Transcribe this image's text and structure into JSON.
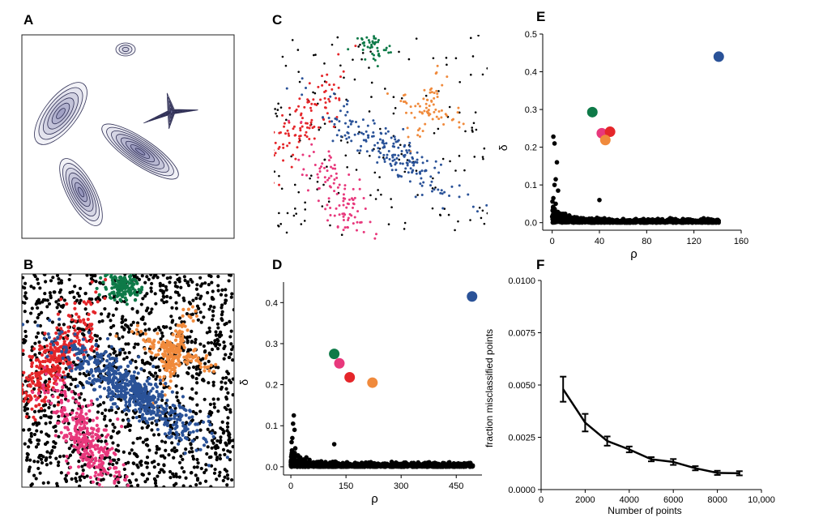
{
  "panel_labels": {
    "A": "A",
    "B": "B",
    "C": "C",
    "D": "D",
    "E": "E",
    "F": "F"
  },
  "colors": {
    "green": "#0e7a48",
    "orange": "#f08a3c",
    "red": "#e5262a",
    "blue": "#2a5298",
    "pink": "#e8387c",
    "noise": "#000000",
    "contour": "#2f2f55",
    "density": "#4a4a90"
  },
  "panel_A": {
    "description_keys": [
      "gaussian",
      "star",
      "crescent",
      "ellipse"
    ]
  },
  "chart_data": [
    {
      "panel": "D",
      "type": "scatter",
      "xlabel": "ρ",
      "ylabel": "δ",
      "xlim": [
        -20,
        520
      ],
      "ylim": [
        -0.02,
        0.45
      ],
      "xticks": [
        0,
        150,
        300,
        450
      ],
      "yticks": [
        0.0,
        0.1,
        0.2,
        0.3,
        0.4
      ],
      "xticklabels": [
        "0",
        "150",
        "300",
        "450"
      ],
      "yticklabels": [
        "0.0",
        "0.1",
        "0.2",
        "0.3",
        "0.4"
      ],
      "cluster_centers": [
        {
          "color": "blue",
          "x": 493,
          "y": 0.415
        },
        {
          "color": "green",
          "x": 118,
          "y": 0.275
        },
        {
          "color": "pink",
          "x": 132,
          "y": 0.252
        },
        {
          "color": "red",
          "x": 160,
          "y": 0.218
        },
        {
          "color": "orange",
          "x": 222,
          "y": 0.205
        }
      ],
      "outliers": [
        {
          "x": 8,
          "y": 0.125
        },
        {
          "x": 6,
          "y": 0.105
        },
        {
          "x": 10,
          "y": 0.09
        },
        {
          "x": 4,
          "y": 0.07
        },
        {
          "x": 2,
          "y": 0.06
        },
        {
          "x": 118,
          "y": 0.055
        },
        {
          "x": 12,
          "y": 0.045
        },
        {
          "x": 3,
          "y": 0.04
        }
      ],
      "bulk": {
        "x_max": 495,
        "y_max": 0.02
      }
    },
    {
      "panel": "E",
      "type": "scatter",
      "xlabel": "ρ",
      "ylabel": "δ",
      "xlim": [
        -8,
        160
      ],
      "ylim": [
        -0.02,
        0.5
      ],
      "xticks": [
        0,
        40,
        80,
        120,
        160
      ],
      "yticks": [
        0.0,
        0.1,
        0.2,
        0.3,
        0.4,
        0.5
      ],
      "xticklabels": [
        "0",
        "40",
        "80",
        "120",
        "160"
      ],
      "yticklabels": [
        "0.0",
        "0.1",
        "0.2",
        "0.3",
        "0.4",
        "0.5"
      ],
      "cluster_centers": [
        {
          "color": "blue",
          "x": 141,
          "y": 0.44
        },
        {
          "color": "green",
          "x": 34,
          "y": 0.293
        },
        {
          "color": "pink",
          "x": 42,
          "y": 0.237
        },
        {
          "color": "red",
          "x": 49,
          "y": 0.241
        },
        {
          "color": "orange",
          "x": 45,
          "y": 0.219
        }
      ],
      "outliers": [
        {
          "x": 1,
          "y": 0.228
        },
        {
          "x": 2,
          "y": 0.21
        },
        {
          "x": 4,
          "y": 0.16
        },
        {
          "x": 3,
          "y": 0.115
        },
        {
          "x": 2,
          "y": 0.1
        },
        {
          "x": 5,
          "y": 0.085
        },
        {
          "x": 40,
          "y": 0.06
        },
        {
          "x": 1,
          "y": 0.065
        },
        {
          "x": 3,
          "y": 0.05
        }
      ],
      "bulk": {
        "x_max": 141,
        "y_max": 0.03
      }
    },
    {
      "panel": "F",
      "type": "line",
      "xlabel": "Number of points",
      "ylabel": "fraction misclassified points",
      "xlim": [
        0,
        10000
      ],
      "ylim": [
        0,
        0.01
      ],
      "xticks": [
        0,
        2000,
        4000,
        6000,
        8000,
        10000
      ],
      "xticklabels": [
        "0",
        "2000",
        "4000",
        "6000",
        "8000",
        "10,000"
      ],
      "yticks": [
        0,
        0.0025,
        0.005,
        0.0075,
        0.01
      ],
      "yticklabels": [
        "0.0000",
        "0.0025",
        "0.0050",
        "0.0075",
        "0.0100"
      ],
      "x": [
        1000,
        2000,
        3000,
        4000,
        5000,
        6000,
        7000,
        8000,
        9000
      ],
      "y": [
        0.0048,
        0.0032,
        0.00232,
        0.00192,
        0.00145,
        0.00132,
        0.00102,
        0.0008,
        0.00078
      ],
      "err": [
        0.0006,
        0.00042,
        0.00022,
        0.00014,
        0.0001,
        0.00014,
        0.0001,
        0.0001,
        0.0001
      ]
    }
  ]
}
